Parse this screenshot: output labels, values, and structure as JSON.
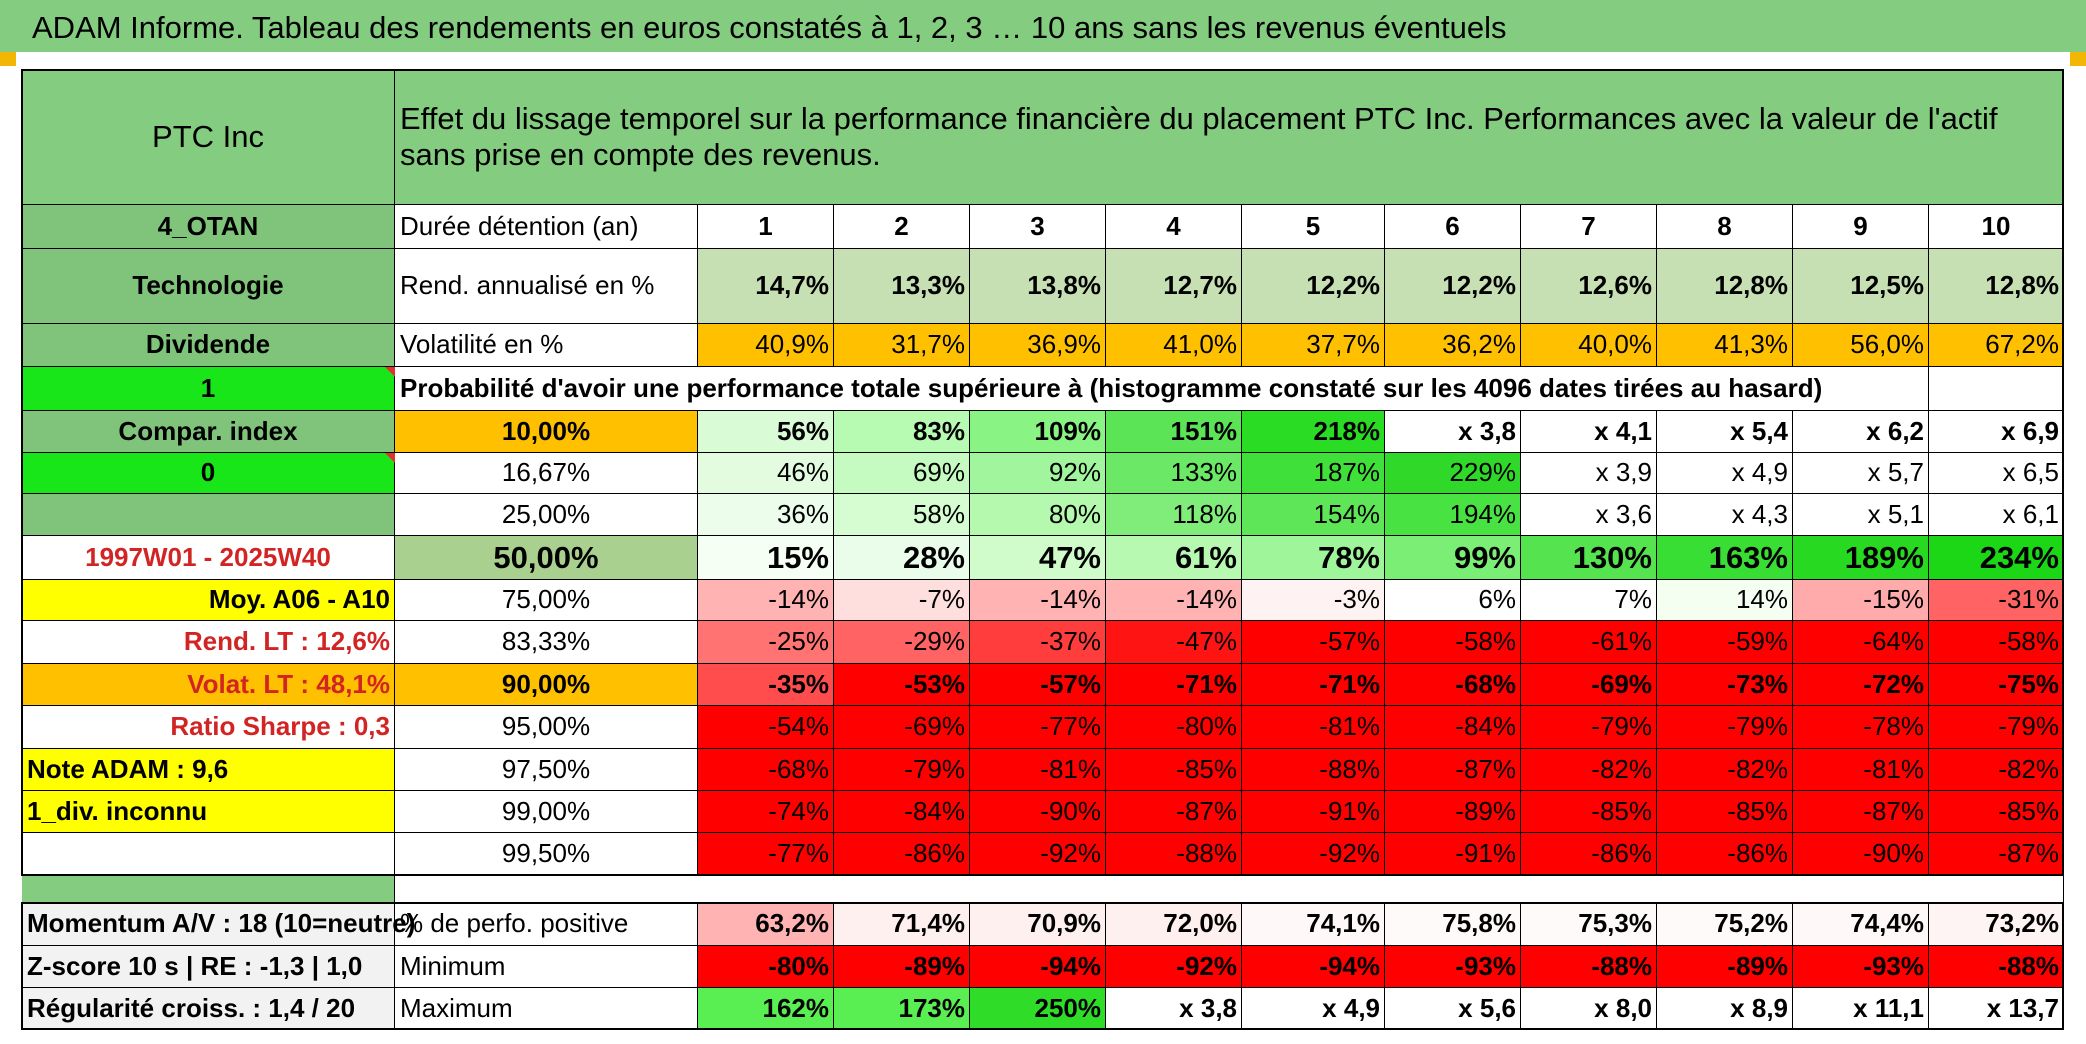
{
  "title": "ADAM Informe. Tableau des rendements en euros constatés à 1, 2, 3 … 10 ans sans les revenus éventuels",
  "header": {
    "company": "PTC Inc",
    "description": "Effet du lissage temporel sur la performance financière du placement PTC Inc. Performances avec la valeur de l'actif sans prise en compte des revenus."
  },
  "sidebar": {
    "code": "4_OTAN",
    "sector": "Technologie",
    "dividend_label": "Dividende",
    "selector_1": "1",
    "compar_index": "Compar. index",
    "selector_0": "0",
    "period": "1997W01 - 2025W40",
    "moy": "Moy. A06 - A10",
    "rend_lt": "Rend. LT :    12,6%",
    "volat_lt": "Volat. LT :    48,1%",
    "sharpe": "Ratio Sharpe :    0,3",
    "note": "Note ADAM : 9,6",
    "div_status": "1_div. inconnu"
  },
  "row_labels": {
    "duration": "Durée détention (an)",
    "yield": "Rend. annualisé en %",
    "volatility": "Volatilité en %",
    "probability": "Probabilité d'avoir une performance totale supérieure à (histogramme constaté sur les 4096 dates tirées au hasard)"
  },
  "years": [
    "1",
    "2",
    "3",
    "4",
    "5",
    "6",
    "7",
    "8",
    "9",
    "10"
  ],
  "yield": [
    "14,7%",
    "13,3%",
    "13,8%",
    "12,7%",
    "12,2%",
    "12,2%",
    "12,6%",
    "12,8%",
    "12,5%",
    "12,8%"
  ],
  "volatility": [
    "40,9%",
    "31,7%",
    "36,9%",
    "41,0%",
    "37,7%",
    "36,2%",
    "40,0%",
    "41,3%",
    "56,0%",
    "67,2%"
  ],
  "quantiles": [
    {
      "pct": "10,00%",
      "values": [
        "56%",
        "83%",
        "109%",
        "151%",
        "218%",
        "x 3,8",
        "x 4,1",
        "x 5,4",
        "x 6,2",
        "x 6,9"
      ]
    },
    {
      "pct": "16,67%",
      "values": [
        "46%",
        "69%",
        "92%",
        "133%",
        "187%",
        "229%",
        "x 3,9",
        "x 4,9",
        "x 5,7",
        "x 6,5"
      ]
    },
    {
      "pct": "25,00%",
      "values": [
        "36%",
        "58%",
        "80%",
        "118%",
        "154%",
        "194%",
        "x 3,6",
        "x 4,3",
        "x 5,1",
        "x 6,1"
      ]
    },
    {
      "pct": "50,00%",
      "values": [
        "15%",
        "28%",
        "47%",
        "61%",
        "78%",
        "99%",
        "130%",
        "163%",
        "189%",
        "234%"
      ]
    },
    {
      "pct": "75,00%",
      "values": [
        "-14%",
        "-7%",
        "-14%",
        "-14%",
        "-3%",
        "6%",
        "7%",
        "14%",
        "-15%",
        "-31%"
      ]
    },
    {
      "pct": "83,33%",
      "values": [
        "-25%",
        "-29%",
        "-37%",
        "-47%",
        "-57%",
        "-58%",
        "-61%",
        "-59%",
        "-64%",
        "-58%"
      ]
    },
    {
      "pct": "90,00%",
      "values": [
        "-35%",
        "-53%",
        "-57%",
        "-71%",
        "-71%",
        "-68%",
        "-69%",
        "-73%",
        "-72%",
        "-75%"
      ]
    },
    {
      "pct": "95,00%",
      "values": [
        "-54%",
        "-69%",
        "-77%",
        "-80%",
        "-81%",
        "-84%",
        "-79%",
        "-79%",
        "-78%",
        "-79%"
      ]
    },
    {
      "pct": "97,50%",
      "values": [
        "-68%",
        "-79%",
        "-81%",
        "-85%",
        "-88%",
        "-87%",
        "-82%",
        "-82%",
        "-81%",
        "-82%"
      ]
    },
    {
      "pct": "99,00%",
      "values": [
        "-74%",
        "-84%",
        "-90%",
        "-87%",
        "-91%",
        "-89%",
        "-85%",
        "-85%",
        "-87%",
        "-85%"
      ]
    },
    {
      "pct": "99,50%",
      "values": [
        "-77%",
        "-86%",
        "-92%",
        "-88%",
        "-92%",
        "-91%",
        "-86%",
        "-86%",
        "-90%",
        "-87%"
      ]
    }
  ],
  "footer": [
    {
      "left": "Momentum A/V : 18 (10=neutre)",
      "label": "% de perfo. positive",
      "values": [
        "63,2%",
        "71,4%",
        "70,9%",
        "72,0%",
        "74,1%",
        "75,8%",
        "75,3%",
        "75,2%",
        "74,4%",
        "73,2%"
      ]
    },
    {
      "left": "Z-score 10 s | RE : -1,3 | 1,0",
      "label": "Minimum",
      "values": [
        "-80%",
        "-89%",
        "-94%",
        "-92%",
        "-94%",
        "-93%",
        "-88%",
        "-89%",
        "-93%",
        "-88%"
      ]
    },
    {
      "left": "Régularité croiss. : 1,4 / 20",
      "label": "Maximum",
      "values": [
        "162%",
        "173%",
        "250%",
        "x 3,8",
        "x 4,9",
        "x 5,6",
        "x 8,0",
        "x 8,9",
        "x 11,1",
        "x 13,7"
      ]
    }
  ],
  "colors": {
    "header_green": "#84cc7f",
    "label_green": "#7fc47a",
    "orange": "#ffc000",
    "yellow": "#ffff00",
    "bright_green": "#19e619",
    "red_text": "#d32424",
    "yield_green": "#c6e0b4",
    "cells": [
      [
        "#d9fbd6",
        "#b7fab2",
        "#89f383",
        "#5be456",
        "#2bdc25",
        "#ffffff",
        "#ffffff",
        "#ffffff",
        "#ffffff",
        "#ffffff"
      ],
      [
        "#e3fce0",
        "#c5fbc0",
        "#a1f59c",
        "#6ce867",
        "#40e03a",
        "#2fd829",
        "#ffffff",
        "#ffffff",
        "#ffffff",
        "#ffffff"
      ],
      [
        "#edfdeb",
        "#d6fcd2",
        "#b5f9af",
        "#80ed7a",
        "#5ee658",
        "#49e243",
        "#ffffff",
        "#ffffff",
        "#ffffff",
        "#ffffff"
      ],
      [
        "#f5fff3",
        "#eafdea",
        "#cffcca",
        "#b8f9b2",
        "#9ff69a",
        "#7bee75",
        "#55e34f",
        "#38de33",
        "#27da21",
        "#1cd716"
      ],
      [
        "#ffb3b3",
        "#ffdede",
        "#ffb3b3",
        "#ffb3b3",
        "#fff2f2",
        "#ffffff",
        "#ffffff",
        "#f4fff2",
        "#ffabab",
        "#ff6363"
      ],
      [
        "#ff7373",
        "#ff6363",
        "#ff3d3d",
        "#ff1414",
        "#ff0000",
        "#ff0000",
        "#ff0000",
        "#ff0000",
        "#ff0000",
        "#ff0000"
      ],
      [
        "#ff4c4c",
        "#ff0000",
        "#ff0000",
        "#ff0000",
        "#ff0000",
        "#ff0000",
        "#ff0000",
        "#ff0000",
        "#ff0000",
        "#ff0000"
      ],
      [
        "#ff0000",
        "#ff0000",
        "#ff0000",
        "#ff0000",
        "#ff0000",
        "#ff0000",
        "#ff0000",
        "#ff0000",
        "#ff0000",
        "#ff0000"
      ],
      [
        "#ff0000",
        "#ff0000",
        "#ff0000",
        "#ff0000",
        "#ff0000",
        "#ff0000",
        "#ff0000",
        "#ff0000",
        "#ff0000",
        "#ff0000"
      ],
      [
        "#ff0000",
        "#ff0000",
        "#ff0000",
        "#ff0000",
        "#ff0000",
        "#ff0000",
        "#ff0000",
        "#ff0000",
        "#ff0000",
        "#ff0000"
      ],
      [
        "#ff0000",
        "#ff0000",
        "#ff0000",
        "#ff0000",
        "#ff0000",
        "#ff0000",
        "#ff0000",
        "#ff0000",
        "#ff0000",
        "#ff0000"
      ]
    ],
    "footer": [
      [
        "#ffb3b3",
        "#fff0f0",
        "#fff0f0",
        "#fff0f0",
        "#fff8f8",
        "#fffafa",
        "#fffafa",
        "#fffafa",
        "#fff8f8",
        "#fff4f4"
      ],
      [
        "#ff0000",
        "#ff0000",
        "#ff0000",
        "#ff0000",
        "#ff0000",
        "#ff0000",
        "#ff0000",
        "#ff0000",
        "#ff0000",
        "#ff0000"
      ],
      [
        "#59ee52",
        "#59ee52",
        "#2fdd28",
        "#ffffff",
        "#ffffff",
        "#ffffff",
        "#ffffff",
        "#ffffff",
        "#ffffff",
        "#ffffff"
      ]
    ],
    "volatility": [
      "#ffc000",
      "#ffc000",
      "#ffc000",
      "#ffc000",
      "#ffc000",
      "#ffc000",
      "#ffc000",
      "#ffc000",
      "#ffc000",
      "#ffc000"
    ],
    "quantile_labels": [
      "#ffc000",
      "#ffffff",
      "#ffffff",
      "#a9d08e",
      "#ffffff",
      "#ffffff",
      "#ffc000",
      "#ffffff",
      "#ffffff",
      "#ffffff",
      "#ffffff"
    ]
  }
}
